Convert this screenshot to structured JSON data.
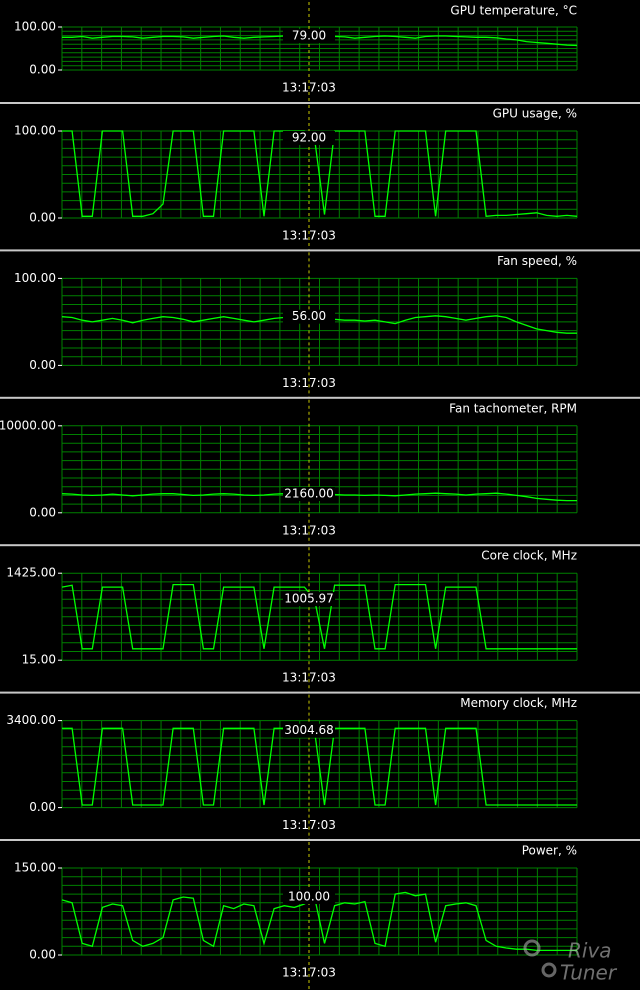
{
  "chart_data": [
    {
      "type": "line",
      "title": "GPU temperature, °C",
      "ylim": [
        0,
        100
      ],
      "yticks": [
        {
          "value": 0,
          "label": "0.00"
        },
        {
          "value": 100,
          "label": "100.00"
        }
      ],
      "cursor": {
        "time": "13:17:03",
        "value": {
          "value": 79,
          "label": "79.00"
        }
      },
      "series": [
        {
          "color": "#00ff00",
          "values": [
            76,
            76,
            78,
            74,
            76,
            78,
            78,
            77,
            74,
            76,
            78,
            78,
            77,
            74,
            76,
            78,
            79,
            76,
            74,
            76,
            77,
            78,
            79,
            77,
            74,
            79,
            78,
            78,
            77,
            74,
            76,
            78,
            79,
            78,
            76,
            74,
            78,
            79,
            79,
            78,
            77,
            76,
            76,
            75,
            72,
            70,
            66,
            64,
            62,
            60,
            58,
            57
          ]
        }
      ]
    },
    {
      "type": "line",
      "title": "GPU usage, %",
      "ylim": [
        0,
        100
      ],
      "yticks": [
        {
          "value": 0,
          "label": "0.00"
        },
        {
          "value": 100,
          "label": "100.00"
        }
      ],
      "cursor": {
        "time": "13:17:03",
        "value": {
          "value": 92,
          "label": "92.00"
        }
      },
      "series": [
        {
          "color": "#00ff00",
          "values": [
            100,
            100,
            2,
            2,
            100,
            100,
            100,
            2,
            2,
            5,
            16,
            100,
            100,
            100,
            2,
            2,
            100,
            100,
            100,
            100,
            2,
            100,
            100,
            100,
            100,
            92,
            4,
            100,
            100,
            100,
            100,
            2,
            2,
            100,
            100,
            100,
            100,
            2,
            100,
            100,
            100,
            100,
            2,
            3,
            3,
            4,
            5,
            6,
            3,
            2,
            3,
            2
          ]
        }
      ]
    },
    {
      "type": "line",
      "title": "Fan speed, %",
      "ylim": [
        0,
        100
      ],
      "yticks": [
        {
          "value": 0,
          "label": "0.00"
        },
        {
          "value": 100,
          "label": "100.00"
        }
      ],
      "cursor": {
        "time": "13:17:03",
        "value": {
          "value": 56,
          "label": "56.00"
        }
      },
      "series": [
        {
          "color": "#00ff00",
          "values": [
            56,
            55,
            52,
            50,
            52,
            54,
            52,
            49,
            52,
            54,
            56,
            55,
            53,
            50,
            52,
            54,
            56,
            54,
            52,
            50,
            52,
            54,
            55,
            52,
            50,
            56,
            56,
            53,
            52,
            52,
            51,
            52,
            50,
            48,
            52,
            55,
            56,
            57,
            56,
            54,
            52,
            54,
            56,
            57,
            55,
            50,
            46,
            42,
            40,
            38,
            37,
            37
          ]
        }
      ]
    },
    {
      "type": "line",
      "title": "Fan tachometer, RPM",
      "ylim": [
        0,
        10000
      ],
      "yticks": [
        {
          "value": 0,
          "label": "0.00"
        },
        {
          "value": 10000,
          "label": "10000.00"
        }
      ],
      "cursor": {
        "time": "13:17:03",
        "value": {
          "value": 2160,
          "label": "2160.00"
        }
      },
      "series": [
        {
          "color": "#00ff00",
          "values": [
            2200,
            2150,
            2050,
            2000,
            2050,
            2150,
            2050,
            1950,
            2050,
            2150,
            2200,
            2200,
            2100,
            2000,
            2050,
            2150,
            2200,
            2150,
            2050,
            2000,
            2050,
            2150,
            2200,
            2100,
            2000,
            2160,
            2160,
            2100,
            2050,
            2050,
            2000,
            2050,
            2000,
            1950,
            2050,
            2150,
            2200,
            2250,
            2200,
            2150,
            2050,
            2150,
            2200,
            2250,
            2150,
            2000,
            1850,
            1650,
            1550,
            1450,
            1400,
            1400
          ]
        }
      ]
    },
    {
      "type": "line",
      "title": "Core clock, MHz",
      "ylim": [
        15,
        1425
      ],
      "yticks": [
        {
          "value": 15,
          "label": "15.00"
        },
        {
          "value": 1425,
          "label": "1425.00"
        }
      ],
      "cursor": {
        "time": "13:17:03",
        "value": {
          "value": 1005.97,
          "label": "1005.97"
        }
      },
      "series": [
        {
          "color": "#00ff00",
          "values": [
            1200,
            1230,
            200,
            200,
            1200,
            1200,
            1200,
            200,
            200,
            200,
            200,
            1240,
            1240,
            1240,
            200,
            200,
            1200,
            1200,
            1200,
            1200,
            200,
            1200,
            1200,
            1200,
            1200,
            1005.97,
            200,
            1230,
            1230,
            1230,
            1230,
            200,
            200,
            1240,
            1240,
            1240,
            1240,
            200,
            1200,
            1200,
            1200,
            1200,
            200,
            200,
            200,
            200,
            200,
            200,
            200,
            200,
            200,
            200
          ]
        }
      ]
    },
    {
      "type": "line",
      "title": "Memory clock, MHz",
      "ylim": [
        0,
        3400
      ],
      "yticks": [
        {
          "value": 0,
          "label": "0.00"
        },
        {
          "value": 3400,
          "label": "3400.00"
        }
      ],
      "cursor": {
        "time": "13:17:03",
        "value": {
          "value": 3004.68,
          "label": "3004.68"
        }
      },
      "series": [
        {
          "color": "#00ff00",
          "values": [
            3100,
            3100,
            100,
            100,
            3100,
            3100,
            3100,
            100,
            100,
            100,
            100,
            3100,
            3100,
            3100,
            100,
            100,
            3100,
            3100,
            3100,
            3100,
            100,
            3100,
            3100,
            3100,
            3100,
            3004.68,
            100,
            3100,
            3100,
            3100,
            3100,
            100,
            100,
            3100,
            3100,
            3100,
            3100,
            100,
            3100,
            3100,
            3100,
            3100,
            100,
            100,
            100,
            100,
            100,
            100,
            100,
            100,
            100,
            100
          ]
        }
      ]
    },
    {
      "type": "line",
      "title": "Power, %",
      "ylim": [
        0,
        150
      ],
      "yticks": [
        {
          "value": 0,
          "label": "0.00"
        },
        {
          "value": 150,
          "label": "150.00"
        }
      ],
      "cursor": {
        "time": "13:17:03",
        "value": {
          "value": 100,
          "label": "100.00"
        }
      },
      "series": [
        {
          "color": "#00ff00",
          "values": [
            95,
            90,
            20,
            15,
            82,
            88,
            85,
            25,
            15,
            20,
            30,
            95,
            100,
            98,
            25,
            15,
            85,
            80,
            88,
            85,
            20,
            80,
            85,
            82,
            88,
            100,
            20,
            85,
            90,
            88,
            92,
            20,
            15,
            105,
            108,
            102,
            105,
            22,
            85,
            88,
            90,
            85,
            25,
            15,
            12,
            10,
            10,
            8,
            8,
            8,
            8,
            8
          ]
        }
      ]
    }
  ],
  "watermark": {
    "line1": "Riva",
    "line2": "Tuner"
  }
}
